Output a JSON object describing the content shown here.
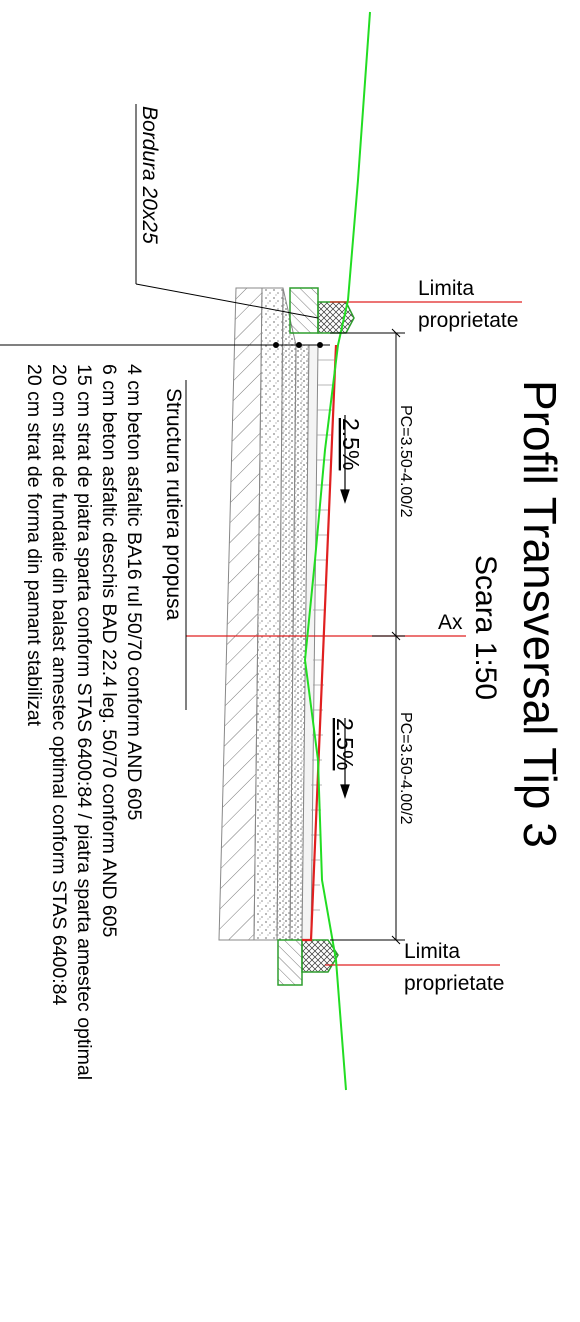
{
  "title": "Profil Transversal Tip 3",
  "scale": "Scara 1:50",
  "bordura": "Bordura 20x25",
  "limita_top": [
    "Limita",
    "proprietate"
  ],
  "limita_bottom": [
    "Limita",
    "proprietate"
  ],
  "axis_label": "Ax",
  "pc_top": "PC=3.50-4.00/2",
  "pc_bottom": "PC=3.50-4.00/2",
  "slope_top": "2.5%",
  "slope_bottom": "2.5%",
  "structure": {
    "heading": "Structura rutiera propusa",
    "layers": [
      "4 cm beton asfaltic BA16 rul 50/70 conform AND 605",
      "6 cm beton asfaltic deschis BAD 22.4 leg. 50/70 conform AND 605",
      "15 cm strat de piatra sparta conform STAS 6400:84 / piatra sparta amestec optimal",
      "20 cm strat de fundatie din balast amestec optimal conform STAS 6400:84",
      "20 cm strat de forma din pamant stabilizat"
    ]
  },
  "colors": {
    "ground_line": "#22dd22",
    "axis_line": "#e02020",
    "layer_stroke": "#888888",
    "curb_stroke": "#2e9e2e"
  }
}
